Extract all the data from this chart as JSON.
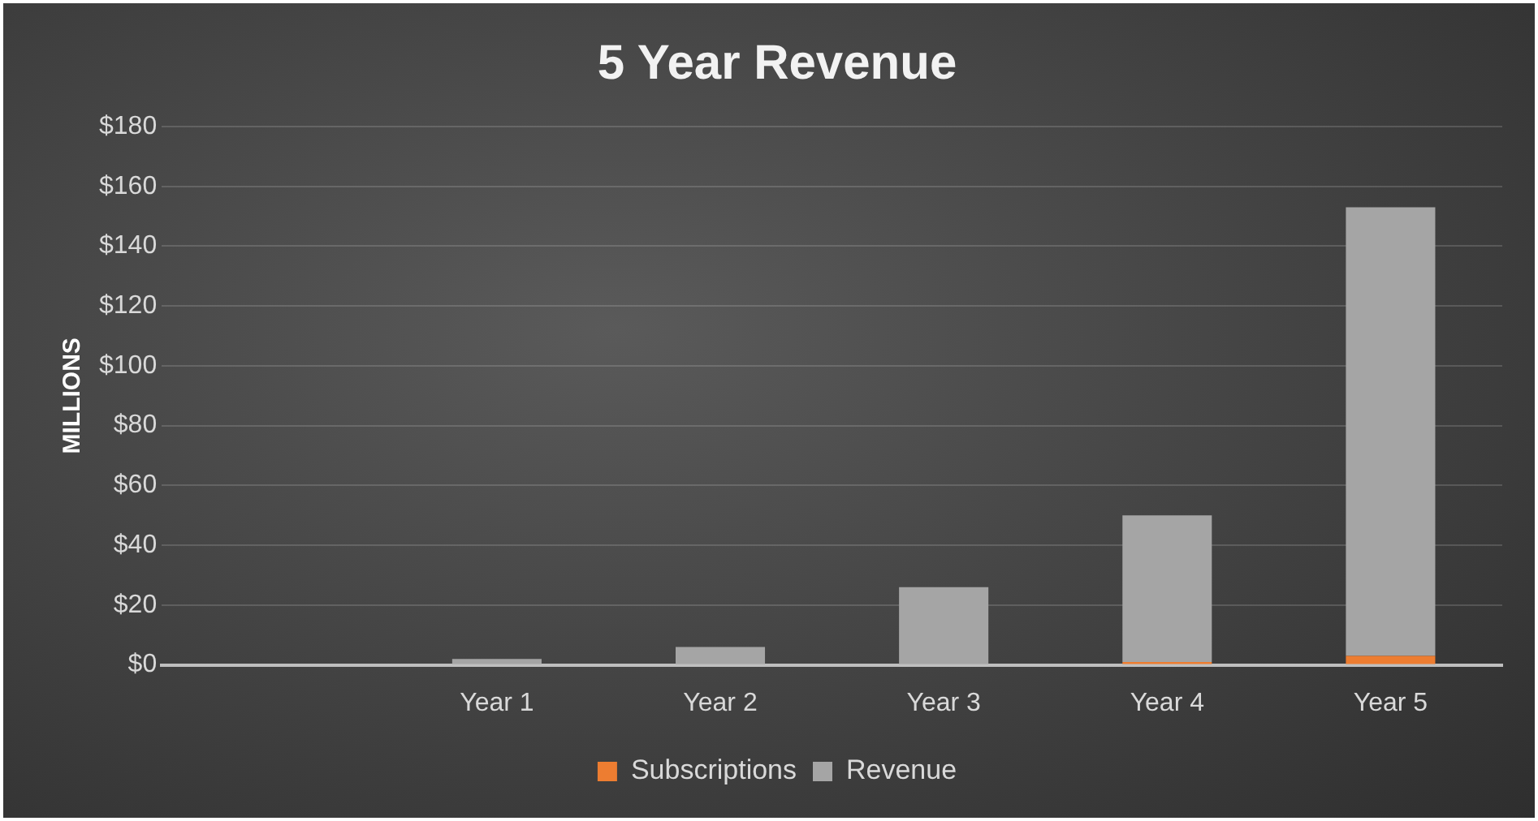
{
  "chart_data": {
    "type": "bar",
    "title": "5 Year Revenue",
    "ylabel": "MILLIONS",
    "categories": [
      null,
      "Year 1",
      "Year 2",
      "Year 3",
      "Year 4",
      "Year 5"
    ],
    "stacked": true,
    "series": [
      {
        "name": "Subscriptions",
        "color": "#ed7d31",
        "values": [
          null,
          0,
          0,
          0,
          1,
          3
        ]
      },
      {
        "name": "Revenue",
        "color": "#a5a5a5",
        "values": [
          null,
          2,
          6,
          26,
          49,
          150
        ]
      }
    ],
    "ylim": [
      0,
      180
    ],
    "yticks": [
      {
        "value": 0,
        "label": "$0"
      },
      {
        "value": 20,
        "label": "$20"
      },
      {
        "value": 40,
        "label": "$40"
      },
      {
        "value": 60,
        "label": "$60"
      },
      {
        "value": 80,
        "label": "$80"
      },
      {
        "value": 100,
        "label": "$100"
      },
      {
        "value": 120,
        "label": "$120"
      },
      {
        "value": 140,
        "label": "$140"
      },
      {
        "value": 160,
        "label": "$160"
      },
      {
        "value": 180,
        "label": "$180"
      }
    ],
    "grid": "y",
    "legend": "bottom"
  }
}
